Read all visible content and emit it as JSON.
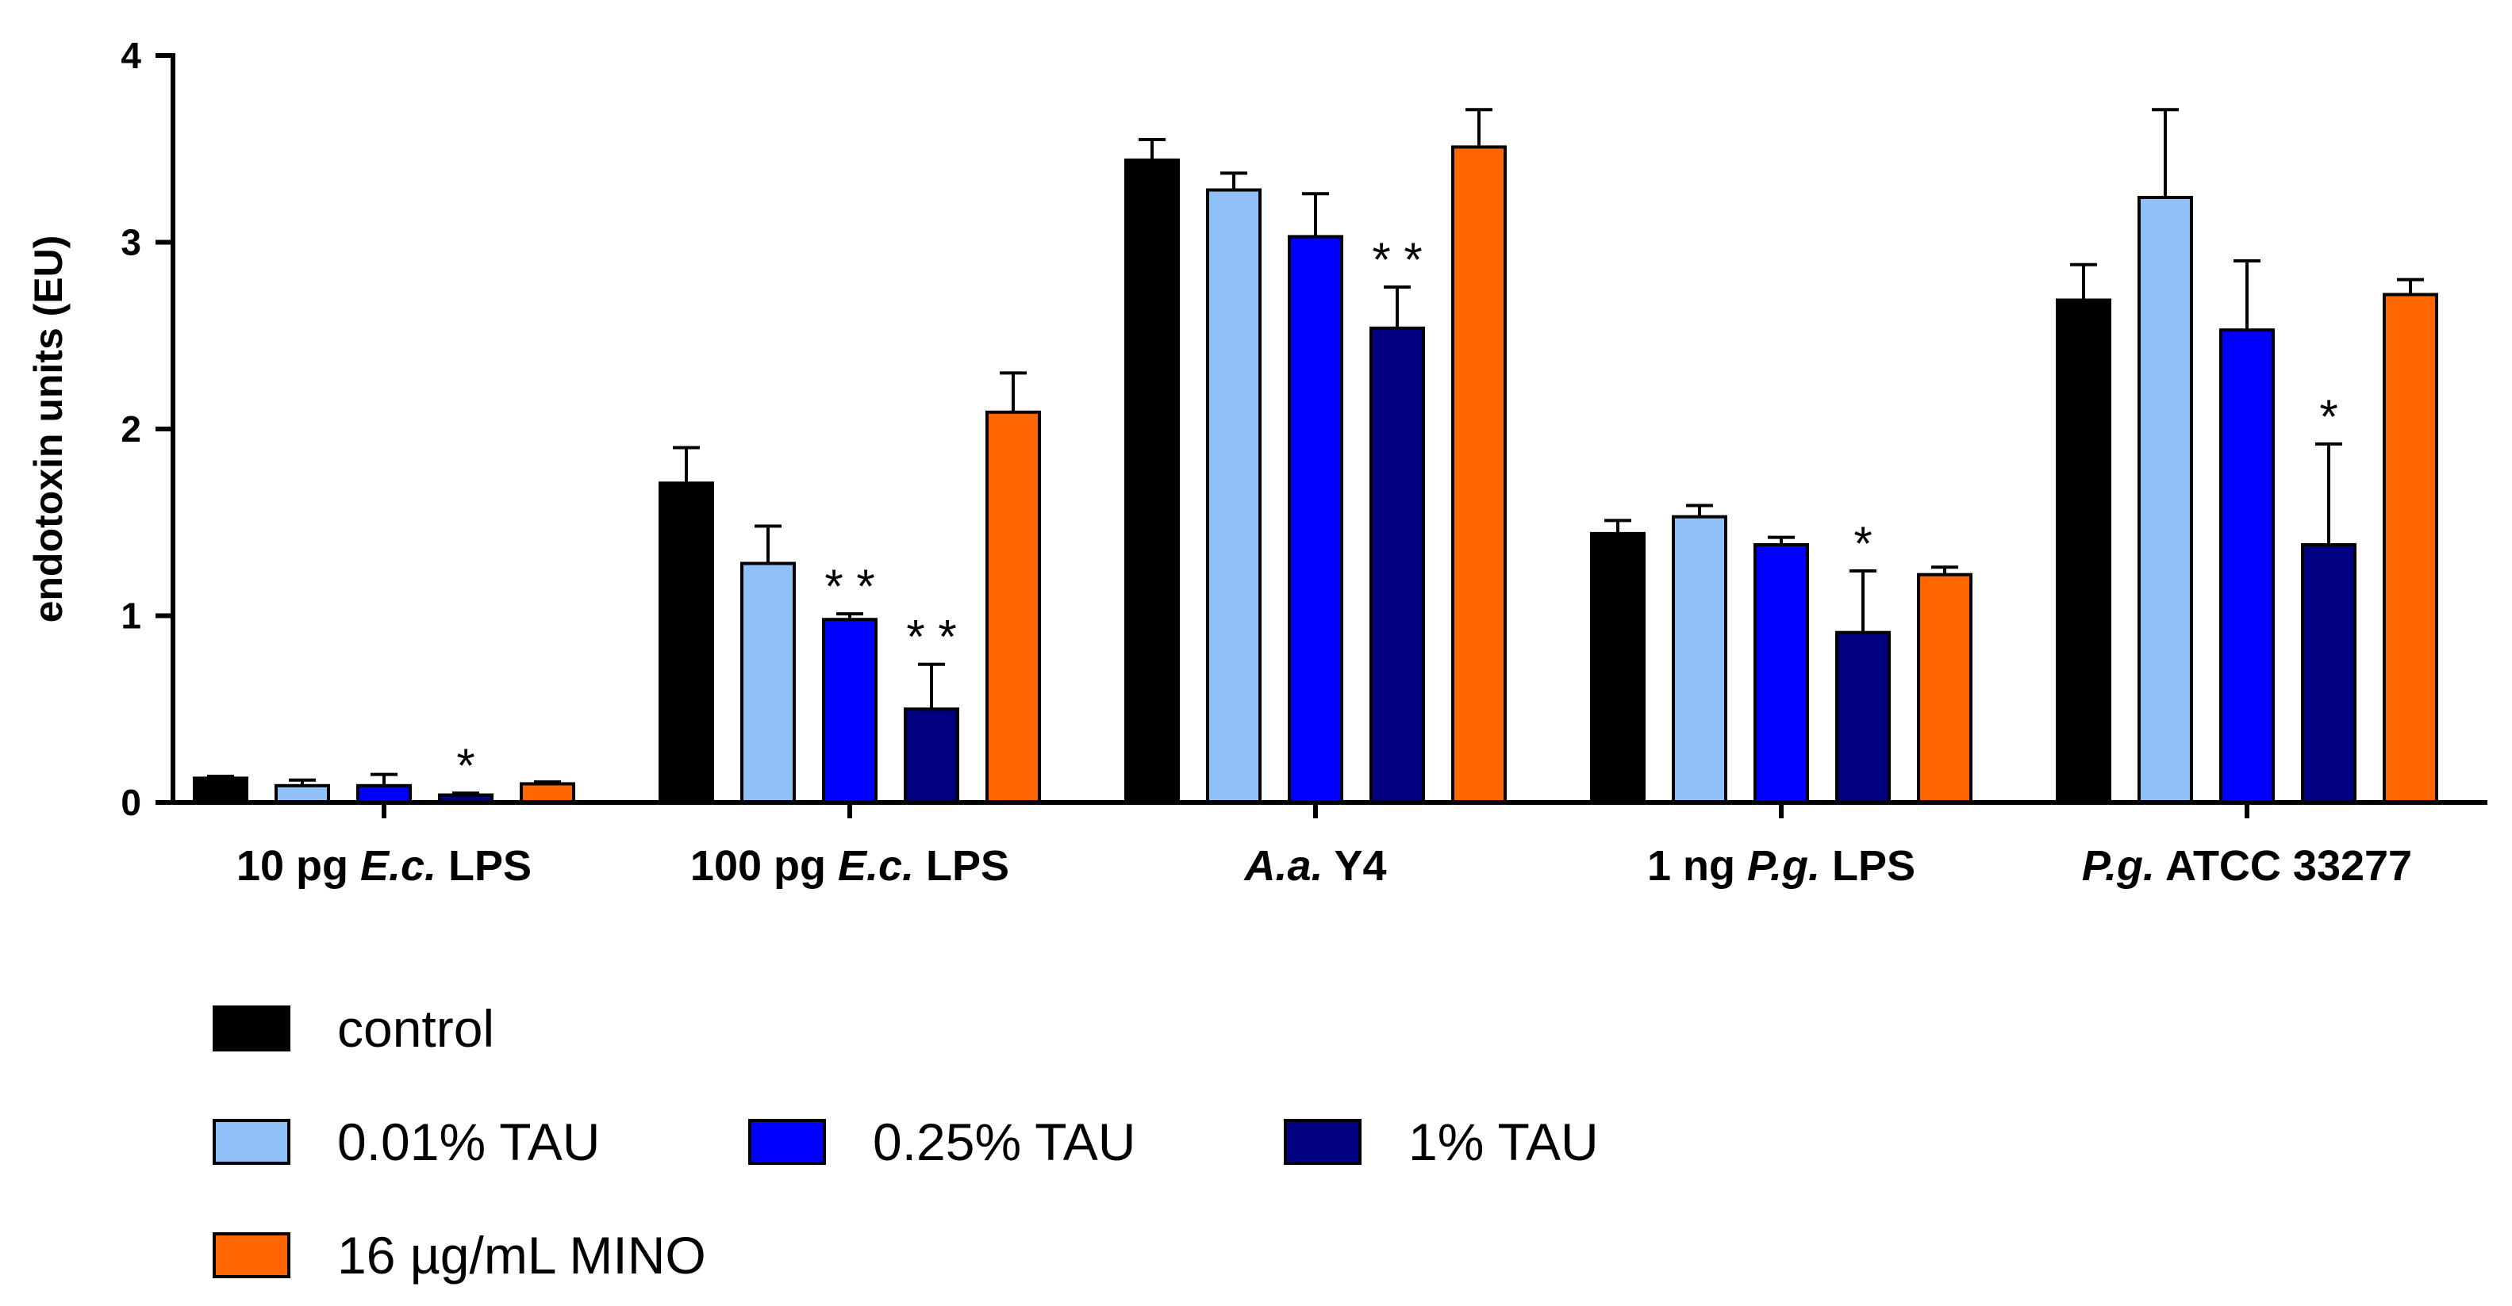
{
  "chart_data": {
    "type": "bar",
    "title": "",
    "xlabel": "",
    "ylabel": "endotoxin units (EU)",
    "ylim": [
      0,
      4
    ],
    "yticks": [
      "0",
      "1",
      "2",
      "3",
      "4"
    ],
    "ytick_values": [
      0,
      1,
      2,
      3,
      4
    ],
    "categories": [
      {
        "parts": [
          {
            "text": "10 pg ",
            "italic": false
          },
          {
            "text": "E.c.",
            "italic": true
          },
          {
            "text": " LPS",
            "italic": false
          }
        ]
      },
      {
        "parts": [
          {
            "text": "100 pg ",
            "italic": false
          },
          {
            "text": "E.c.",
            "italic": true
          },
          {
            "text": " LPS",
            "italic": false
          }
        ]
      },
      {
        "parts": [
          {
            "text": "A.a.",
            "italic": true
          },
          {
            "text": " Y4",
            "italic": false
          }
        ]
      },
      {
        "parts": [
          {
            "text": "1 ng ",
            "italic": false
          },
          {
            "text": "P.g.",
            "italic": true
          },
          {
            "text": " LPS",
            "italic": false
          }
        ]
      },
      {
        "parts": [
          {
            "text": "P.g.",
            "italic": true
          },
          {
            "text": " ATCC 33277",
            "italic": false
          }
        ]
      }
    ],
    "series": [
      {
        "name": "control",
        "color": "#000000",
        "values": [
          0.13,
          1.71,
          3.44,
          1.44,
          2.69
        ],
        "errors": [
          0.01,
          0.19,
          0.11,
          0.07,
          0.19
        ],
        "significance": [
          "",
          "",
          "",
          "",
          ""
        ]
      },
      {
        "name": "0.01% TAU",
        "color": "#8fc0f7",
        "values": [
          0.09,
          1.28,
          3.28,
          1.53,
          3.24
        ],
        "errors": [
          0.03,
          0.2,
          0.09,
          0.06,
          0.47
        ],
        "significance": [
          "",
          "",
          "",
          "",
          ""
        ]
      },
      {
        "name": "0.25% TAU",
        "color": "#0000ff",
        "values": [
          0.09,
          0.98,
          3.03,
          1.38,
          2.53
        ],
        "errors": [
          0.06,
          0.03,
          0.23,
          0.04,
          0.37
        ],
        "significance": [
          "",
          "**",
          "",
          "",
          ""
        ]
      },
      {
        "name": "1% TAU",
        "color": "#000080",
        "values": [
          0.04,
          0.5,
          2.54,
          0.91,
          1.38
        ],
        "errors": [
          0.01,
          0.24,
          0.22,
          0.33,
          0.54
        ],
        "significance": [
          "*",
          "**",
          "**",
          "*",
          "*"
        ]
      },
      {
        "name": "16 µg/mL MINO",
        "color": "#ff6600",
        "values": [
          0.1,
          2.09,
          3.51,
          1.22,
          2.72
        ],
        "errors": [
          0.01,
          0.21,
          0.2,
          0.04,
          0.08
        ],
        "significance": [
          "",
          "",
          "",
          "",
          ""
        ]
      }
    ],
    "legend_position": "bottom-left"
  }
}
